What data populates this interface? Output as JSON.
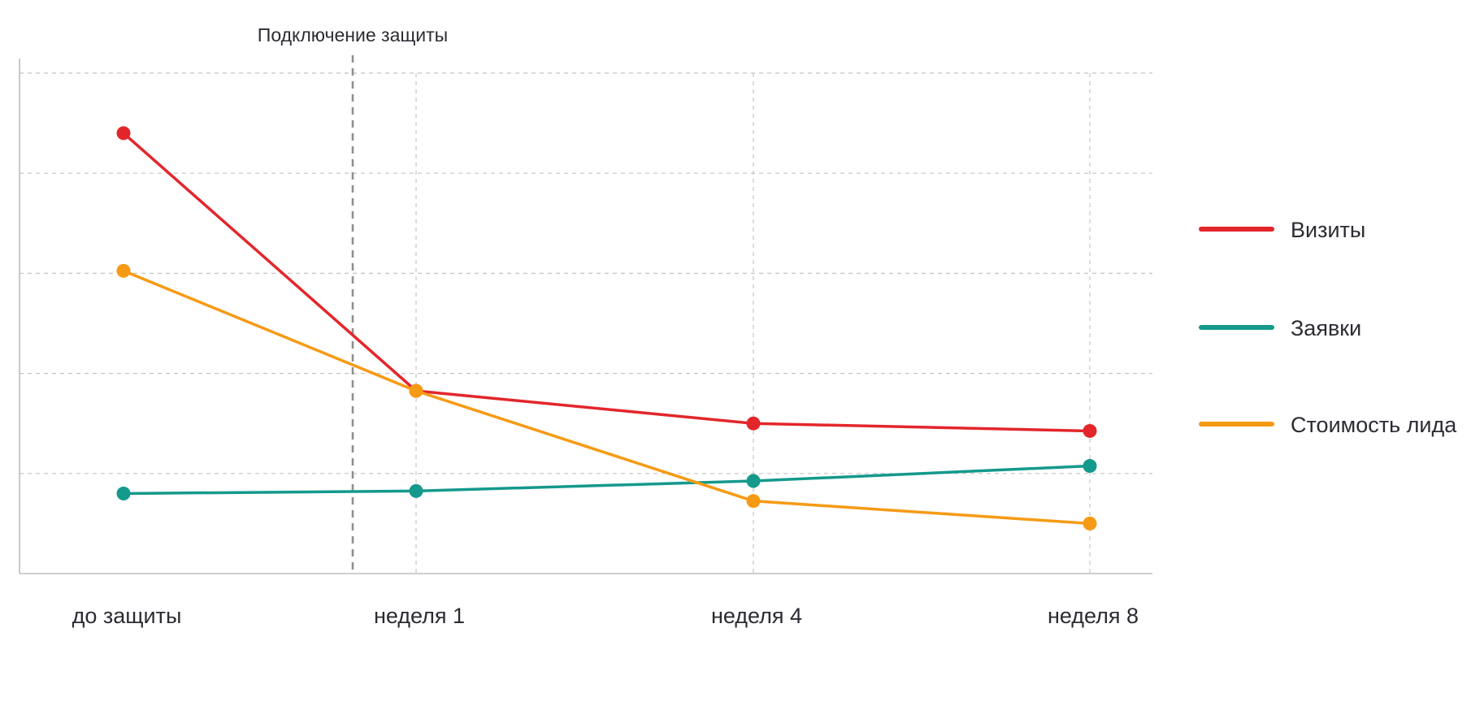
{
  "chart_data": {
    "type": "line",
    "title": "",
    "xlabel": "",
    "ylabel": "",
    "categories": [
      "до защиты",
      "неделя 1",
      "неделя 4",
      "неделя 8"
    ],
    "ylim": [
      0,
      100
    ],
    "grid": true,
    "series": [
      {
        "name": "Визиты",
        "color": "#e3262b",
        "values": [
          88,
          36.5,
          30,
          28.5
        ]
      },
      {
        "name": "Заявки",
        "color": "#14998c",
        "values": [
          16,
          16.5,
          18.5,
          21.5
        ]
      },
      {
        "name": "Стоимость лида",
        "color": "#f69a14",
        "values": [
          60.5,
          36.5,
          14.5,
          10
        ]
      }
    ],
    "annotations": [
      {
        "text": "Подключение защиты",
        "x_between": [
          "до защиты",
          "неделя 1"
        ],
        "style": "dashed-vertical-line"
      }
    ],
    "legend": {
      "placement": "right"
    }
  }
}
